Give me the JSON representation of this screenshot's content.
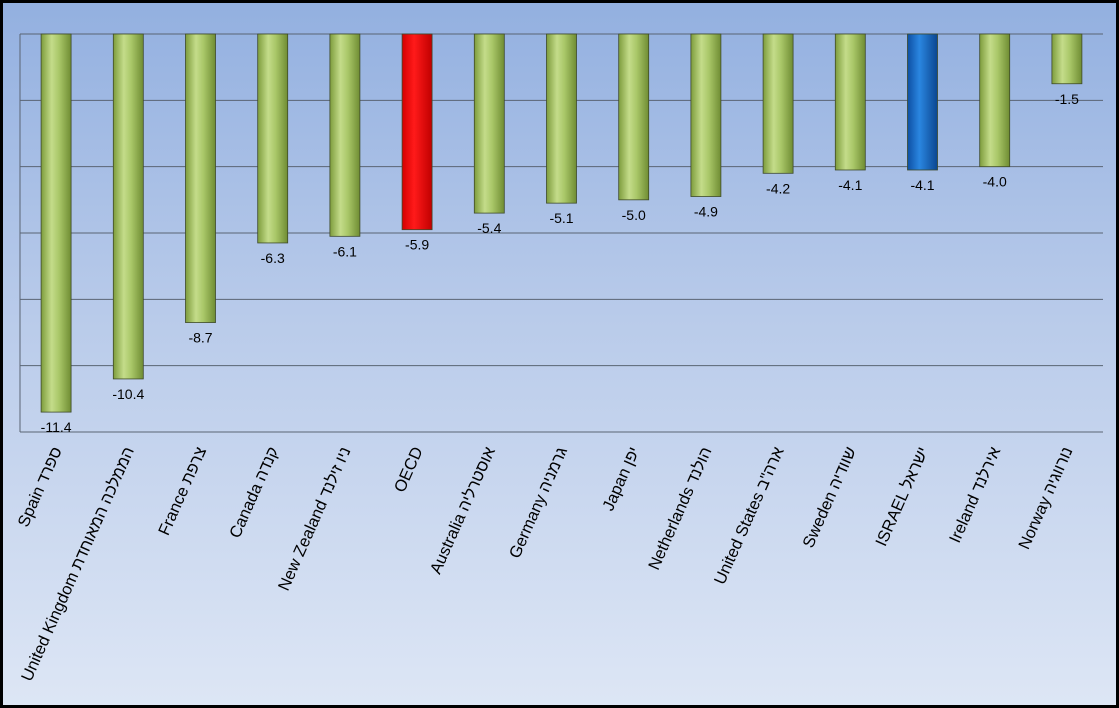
{
  "chart_data": {
    "type": "bar",
    "title": "",
    "xlabel": "",
    "ylabel": "",
    "ylim": [
      -12,
      0
    ],
    "grid": true,
    "legend": "none",
    "categories": [
      "Spain ספרד",
      "United Kingdom הממלכה המאוחדת",
      "France צרפת",
      "Canada קנדה",
      "New Zealand ניו זילנד",
      "OECD",
      "Australia אוסטרליה",
      "Germany גרמניה",
      "Japan יפן",
      "Netherlands הולנד",
      "United States ארה\"ב",
      "Sweden שוודיה",
      "ISRAEL ישראל",
      "Ireland אירלנד",
      "Norway נורווגיה"
    ],
    "values": [
      -11.4,
      -10.4,
      -8.7,
      -6.3,
      -6.1,
      -5.9,
      -5.4,
      -5.1,
      -5.0,
      -4.9,
      -4.2,
      -4.1,
      -4.1,
      -4.0,
      -1.5
    ],
    "value_labels": [
      "-11.4",
      "-10.4",
      "-8.7",
      "-6.3",
      "-6.1",
      "-5.9",
      "-5.4",
      "-5.1",
      "-5.0",
      "-4.9",
      "-4.2",
      "-4.1",
      "-4.1",
      "-4.0",
      "-1.5"
    ],
    "colors": {
      "default": "#9bbb59",
      "OECD": "#ff0000",
      "ISRAEL ישראל": "#1f6fc6"
    }
  }
}
